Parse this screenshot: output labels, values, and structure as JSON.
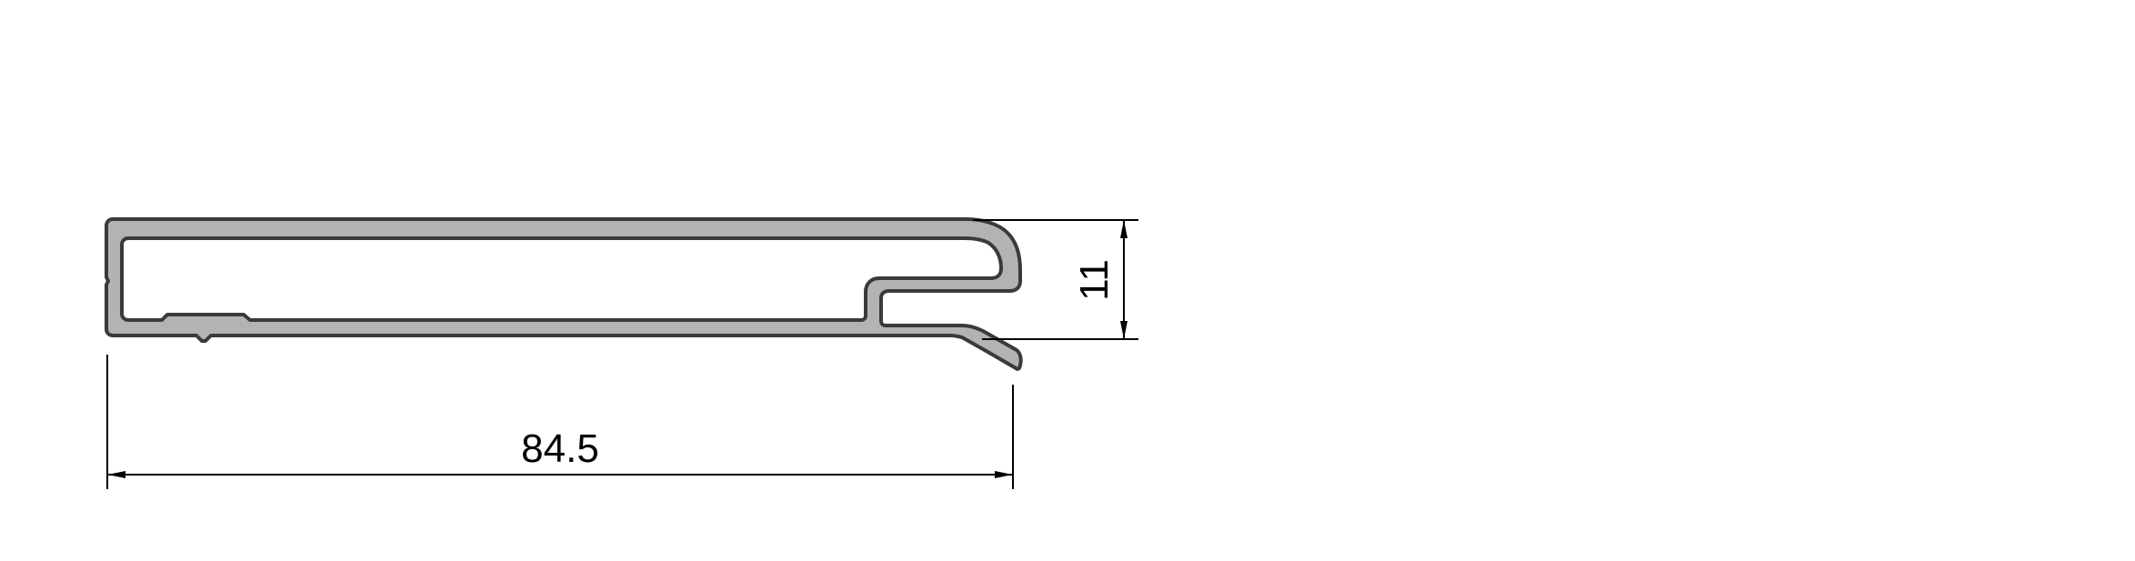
{
  "drawing": {
    "profile_fill": "#b3b3b3",
    "line_color": "#000000",
    "dimensions": {
      "width": {
        "value": "84.5"
      },
      "height": {
        "value": "11"
      }
    }
  }
}
